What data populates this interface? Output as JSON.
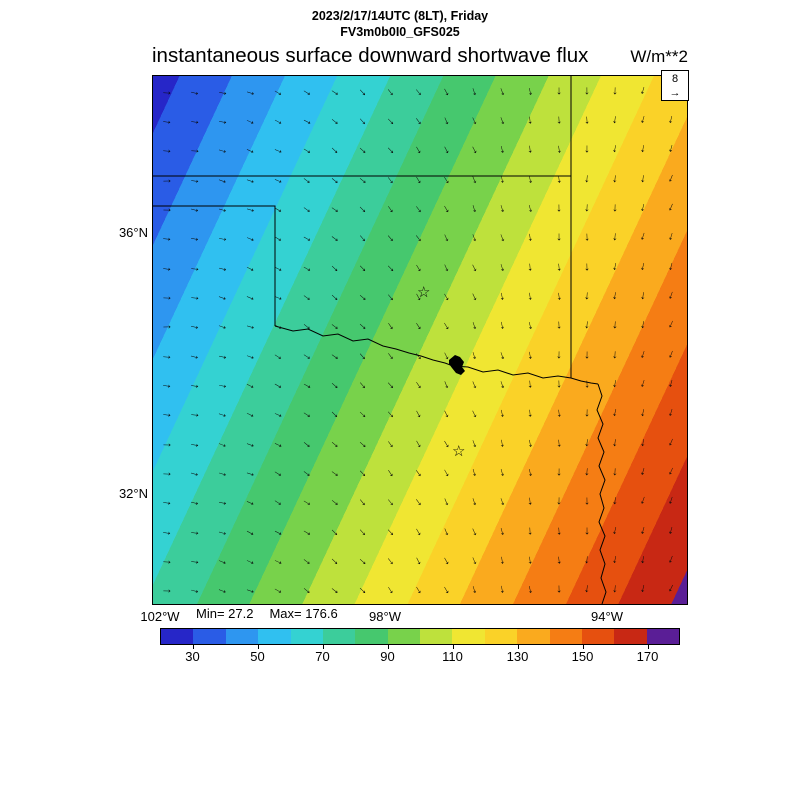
{
  "header": {
    "datetime": "2023/2/17/14UTC (8LT), Friday",
    "model": "FV3m0b0I0_GFS025",
    "title": "instantaneous surface downward shortwave flux",
    "units": "W/m**2"
  },
  "axes": {
    "lat": [
      "36°N",
      "32°N"
    ],
    "lon": [
      "102°W",
      "98°W",
      "94°W"
    ]
  },
  "stats": {
    "min_label": "Min= 27.2",
    "max_label": "Max= 176.6"
  },
  "map": {
    "reference_vector": {
      "value": "8"
    },
    "wind_arrow_glyph": "→",
    "star_glyph": "☆"
  },
  "chart_data": {
    "type": "heatmap",
    "title": "instantaneous surface downward shortwave flux",
    "subtitle": [
      "2023/2/17/14UTC (8LT), Friday",
      "FV3m0b0I0_GFS025"
    ],
    "units": "W/m**2",
    "region": "Southern Great Plains (Oklahoma / Texas borders drawn)",
    "min": 27.2,
    "max": 176.6,
    "lat_ticks": [
      "36°N",
      "32°N"
    ],
    "lon_ticks": [
      "102°W",
      "98°W",
      "94°W"
    ],
    "colorbar": {
      "levels_start": 20,
      "levels_end": 180,
      "level_step": 10,
      "tick_labels": [
        30,
        50,
        70,
        90,
        110,
        130,
        150,
        170
      ],
      "colors": [
        "#2626C8",
        "#2A5CE6",
        "#2E96F0",
        "#30C0F0",
        "#34D2D2",
        "#3CCD9B",
        "#46C86E",
        "#78D24B",
        "#BEE13C",
        "#F0E632",
        "#FAD228",
        "#FAAA1E",
        "#F57D14",
        "#E6500F",
        "#C82814",
        "#5A1E96"
      ]
    },
    "field_pattern": "Flux increases in diagonal bands from ~30 W/m**2 (blue, northwest) to ~175 W/m**2 (dark red, east/southeast)",
    "wind_overlay": {
      "reference_value": 8,
      "description": "Wind arrows veer from easterly on the west side to southerly / south-southwesterly on the east side"
    },
    "markers": [
      "star marker in central Oklahoma",
      "star marker in north Texas"
    ]
  }
}
